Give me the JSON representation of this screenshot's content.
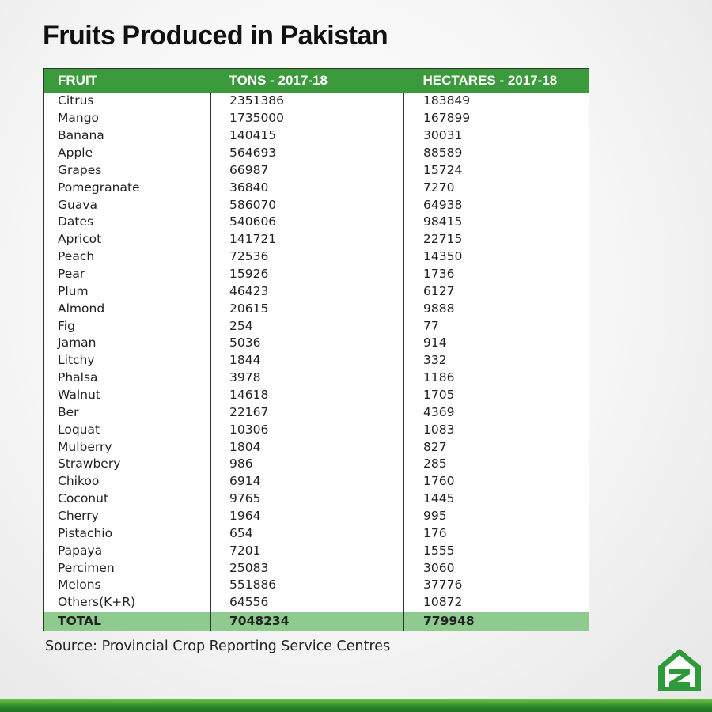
{
  "title": "Fruits Produced in Pakistan",
  "table": {
    "header": [
      "FRUIT",
      "TONS - 2017-18",
      "HECTARES - 2017-18"
    ],
    "rows": [
      [
        "Citrus",
        2351386,
        183849
      ],
      [
        "Mango",
        1735000,
        167899
      ],
      [
        "Banana",
        140415,
        30031
      ],
      [
        "Apple",
        564693,
        88589
      ],
      [
        "Grapes",
        66987,
        15724
      ],
      [
        "Pomegranate",
        36840,
        7270
      ],
      [
        "Guava",
        586070,
        64938
      ],
      [
        "Dates",
        540606,
        98415
      ],
      [
        "Apricot",
        141721,
        22715
      ],
      [
        "Peach",
        72536,
        14350
      ],
      [
        "Pear",
        15926,
        1736
      ],
      [
        "Plum",
        46423,
        6127
      ],
      [
        "Almond",
        20615,
        9888
      ],
      [
        "Fig",
        254,
        77
      ],
      [
        "Jaman",
        5036,
        914
      ],
      [
        "Litchy",
        1844,
        332
      ],
      [
        "Phalsa",
        3978,
        1186
      ],
      [
        "Walnut",
        14618,
        1705
      ],
      [
        "Ber",
        22167,
        4369
      ],
      [
        "Loquat",
        10306,
        1083
      ],
      [
        "Mulberry",
        1804,
        827
      ],
      [
        "Strawbery",
        986,
        285
      ],
      [
        "Chikoo",
        6914,
        1760
      ],
      [
        "Coconut",
        9765,
        1445
      ],
      [
        "Cherry",
        1964,
        995
      ],
      [
        "Pistachio",
        654,
        176
      ],
      [
        "Papaya",
        7201,
        1555
      ],
      [
        "Percimen",
        25083,
        3060
      ],
      [
        "Melons",
        551886,
        37776
      ],
      [
        "Others(K+R)",
        64556,
        10872
      ]
    ],
    "total": [
      "TOTAL",
      7048234,
      779948
    ]
  },
  "source": "Source: Provincial Crop Reporting Service Centres"
}
